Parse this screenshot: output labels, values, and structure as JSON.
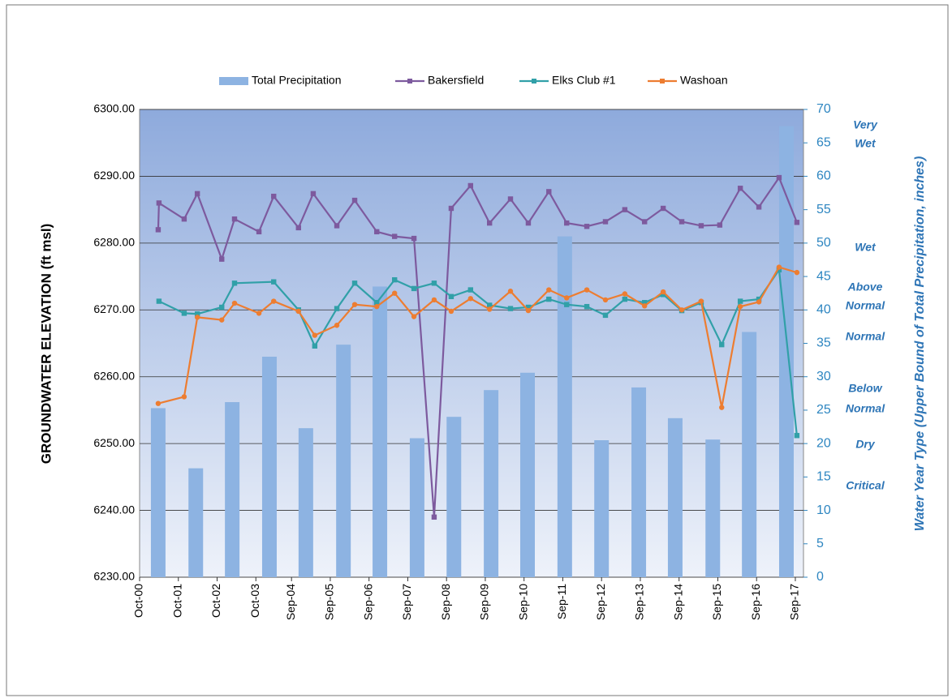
{
  "chart_data": {
    "type": "combo",
    "y_label": "GROUNDWATER ELEVATION (ft msl)",
    "y2_label": "Water Year Type (Upper Bound of Total Precipitation, inches)",
    "xlim": [
      2000.75,
      2017.88
    ],
    "xticks": [
      {
        "value": 2000.75,
        "label": "Oct-00"
      },
      {
        "value": 2001.75,
        "label": "Oct-01"
      },
      {
        "value": 2002.75,
        "label": "Oct-02"
      },
      {
        "value": 2003.75,
        "label": "Oct-03"
      },
      {
        "value": 2004.67,
        "label": "Sep-04"
      },
      {
        "value": 2005.67,
        "label": "Sep-05"
      },
      {
        "value": 2006.67,
        "label": "Sep-06"
      },
      {
        "value": 2007.67,
        "label": "Sep-07"
      },
      {
        "value": 2008.67,
        "label": "Sep-08"
      },
      {
        "value": 2009.67,
        "label": "Sep-09"
      },
      {
        "value": 2010.67,
        "label": "Sep-10"
      },
      {
        "value": 2011.67,
        "label": "Sep-11"
      },
      {
        "value": 2012.67,
        "label": "Sep-12"
      },
      {
        "value": 2013.67,
        "label": "Sep-13"
      },
      {
        "value": 2014.67,
        "label": "Sep-14"
      },
      {
        "value": 2015.67,
        "label": "Sep-15"
      },
      {
        "value": 2016.67,
        "label": "Sep-16"
      },
      {
        "value": 2017.67,
        "label": "Sep-17"
      }
    ],
    "ylim": [
      6230,
      6300
    ],
    "yticks": [
      {
        "value": 6230,
        "label": "6230.00"
      },
      {
        "value": 6240,
        "label": "6240.00"
      },
      {
        "value": 6250,
        "label": "6250.00"
      },
      {
        "value": 6260,
        "label": "6260.00"
      },
      {
        "value": 6270,
        "label": "6270.00"
      },
      {
        "value": 6280,
        "label": "6280.00"
      },
      {
        "value": 6290,
        "label": "6290.00"
      },
      {
        "value": 6300,
        "label": "6300.00"
      }
    ],
    "y2lim": [
      0,
      70
    ],
    "y2ticks": [
      0,
      5,
      10,
      15,
      20,
      25,
      30,
      35,
      40,
      45,
      50,
      55,
      60,
      65,
      70
    ],
    "grid": true,
    "legend": "top",
    "annotations": [
      [
        "Very",
        "Wet"
      ],
      [
        "Wet"
      ],
      [
        "Above",
        "Normal"
      ],
      [
        "Normal"
      ],
      [
        "Below",
        "Normal"
      ],
      [
        "Dry"
      ],
      [
        "Critical"
      ]
    ],
    "series": [
      {
        "name": "Total Precipitation",
        "type": "bar",
        "axis": "y2",
        "color": "#8db3e2",
        "x": [
          2001.23,
          2002.2,
          2003.14,
          2004.1,
          2005.04,
          2006.01,
          2006.95,
          2007.91,
          2008.86,
          2009.82,
          2010.76,
          2011.72,
          2012.67,
          2013.63,
          2014.57,
          2015.54,
          2016.48,
          2017.44
        ],
        "values": [
          25.3,
          16.3,
          26.2,
          33,
          22.3,
          34.8,
          43.5,
          20.8,
          24,
          28,
          30.6,
          51,
          20.5,
          28.4,
          23.8,
          20.6,
          36.7,
          67.5
        ]
      },
      {
        "name": "Bakersfield",
        "type": "line",
        "color": "#7d5a9e",
        "x": [
          2001.23,
          2001.25,
          2001.9,
          2002.24,
          2002.87,
          2003.2,
          2003.83,
          2004.21,
          2004.85,
          2005.23,
          2005.84,
          2006.3,
          2006.87,
          2007.33,
          2007.83,
          2008.35,
          2008.79,
          2009.29,
          2009.78,
          2010.32,
          2010.78,
          2011.31,
          2011.77,
          2012.29,
          2012.77,
          2013.27,
          2013.78,
          2014.26,
          2014.74,
          2015.24,
          2015.72,
          2016.25,
          2016.73,
          2017.25,
          2017.71
        ],
        "values": [
          6282,
          6286,
          6283.6,
          6287.4,
          6277.6,
          6283.6,
          6281.7,
          6287,
          6282.3,
          6287.4,
          6282.6,
          6286.4,
          6281.7,
          6281,
          6280.7,
          6239,
          6285.2,
          6288.6,
          6283,
          6286.6,
          6283,
          6287.7,
          6283,
          6282.5,
          6283.2,
          6285,
          6283.2,
          6285.2,
          6283.2,
          6282.6,
          6282.7,
          6288.2,
          6285.4,
          6289.8,
          6283.1
        ]
      },
      {
        "name": "Elks Club #1",
        "type": "line",
        "color": "#31a0a8",
        "x": [
          2001.25,
          2001.9,
          2002.24,
          2002.87,
          2003.2,
          2004.21,
          2004.85,
          2005.27,
          2005.84,
          2006.3,
          2006.87,
          2007.33,
          2007.83,
          2008.35,
          2008.79,
          2009.29,
          2009.78,
          2010.32,
          2010.78,
          2011.31,
          2011.77,
          2012.29,
          2012.77,
          2013.27,
          2013.78,
          2014.26,
          2014.74,
          2015.24,
          2015.77,
          2016.25,
          2016.73,
          2017.25,
          2017.71
        ],
        "values": [
          6271.3,
          6269.5,
          6269.4,
          6270.4,
          6274,
          6274.2,
          6270,
          6264.6,
          6270.2,
          6274,
          6271.1,
          6274.5,
          6273.2,
          6274,
          6272,
          6273,
          6270.7,
          6270.2,
          6270.4,
          6271.6,
          6270.8,
          6270.5,
          6269.2,
          6271.6,
          6271.1,
          6272.3,
          6269.9,
          6271.1,
          6264.8,
          6271.3,
          6271.6,
          6276,
          6251.2
        ]
      },
      {
        "name": "Washoan",
        "type": "line",
        "color": "#ed7d31",
        "x": [
          2001.23,
          2001.9,
          2002.24,
          2002.87,
          2003.2,
          2003.83,
          2004.21,
          2004.85,
          2005.27,
          2005.84,
          2006.3,
          2006.87,
          2007.33,
          2007.83,
          2008.35,
          2008.79,
          2009.29,
          2009.78,
          2010.32,
          2010.78,
          2011.31,
          2011.77,
          2012.29,
          2012.77,
          2013.27,
          2013.78,
          2014.26,
          2014.74,
          2015.24,
          2015.77,
          2016.25,
          2016.73,
          2017.25,
          2017.71
        ],
        "values": [
          6256,
          6257,
          6268.9,
          6268.5,
          6271,
          6269.5,
          6271.3,
          6269.8,
          6266.2,
          6267.7,
          6270.8,
          6270.5,
          6272.5,
          6269,
          6271.5,
          6269.8,
          6271.7,
          6270.1,
          6272.8,
          6269.9,
          6273,
          6271.8,
          6273,
          6271.5,
          6272.4,
          6270.6,
          6272.7,
          6270,
          6271.3,
          6255.4,
          6270.5,
          6271.2,
          6276.4,
          6275.6
        ]
      }
    ]
  }
}
